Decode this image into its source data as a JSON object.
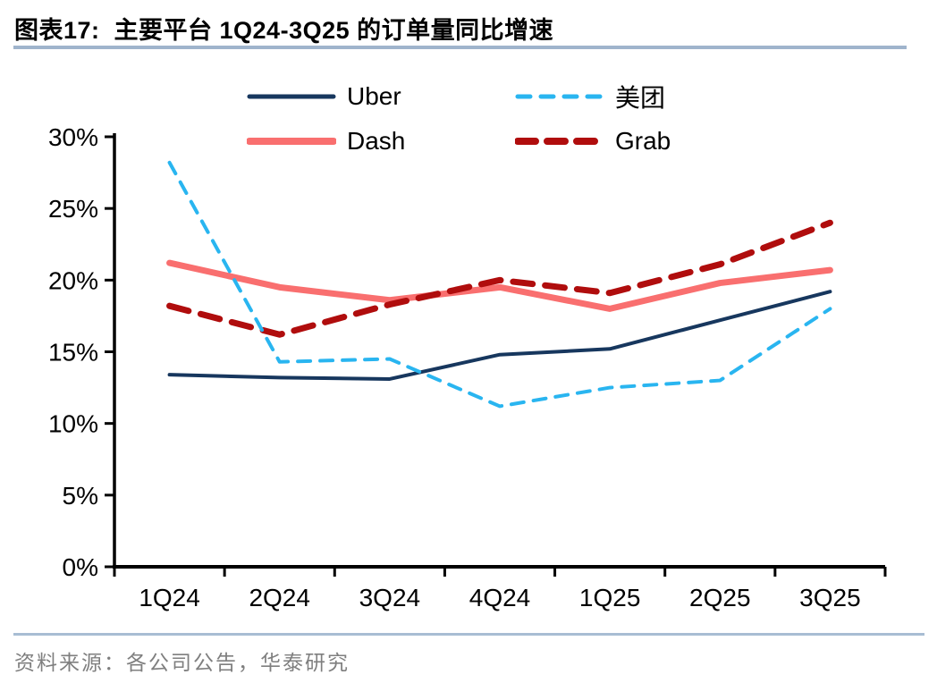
{
  "page": {
    "title": "图表17:  主要平台 1Q24-3Q25 的订单量同比增速",
    "source": "资料来源：各公司公告，华泰研究"
  },
  "chart_data": {
    "type": "line",
    "title": "主要平台 1Q24-3Q25 的订单量同比增速",
    "categories": [
      "1Q24",
      "2Q24",
      "3Q24",
      "4Q24",
      "1Q25",
      "2Q25",
      "3Q25"
    ],
    "series": [
      {
        "name": "Uber",
        "color": "#17375E",
        "style": "solid",
        "width": 4,
        "values": [
          13.4,
          13.2,
          13.1,
          14.8,
          15.2,
          17.2,
          19.2
        ]
      },
      {
        "name": "美团",
        "color": "#29B5F0",
        "style": "dashed",
        "width": 4,
        "values": [
          28.2,
          14.3,
          14.5,
          11.2,
          12.5,
          13.0,
          18.0
        ]
      },
      {
        "name": "Dash",
        "color": "#F96F6F",
        "style": "solid",
        "width": 7,
        "values": [
          21.2,
          19.5,
          18.6,
          19.5,
          18.0,
          19.8,
          20.7
        ]
      },
      {
        "name": "Grab",
        "color": "#B00D0D",
        "style": "dashed",
        "width": 7,
        "values": [
          18.2,
          16.2,
          18.3,
          20.0,
          19.1,
          21.1,
          24.0
        ]
      }
    ],
    "ylabel": "",
    "xlabel": "",
    "ylim": [
      0,
      30
    ],
    "ytick_step": 5,
    "yticks": [
      "0%",
      "5%",
      "10%",
      "15%",
      "20%",
      "25%",
      "30%"
    ],
    "grid": false,
    "legend_position": "top"
  },
  "style": {
    "axis_color": "#000000",
    "rule_color": "#9FB4CC",
    "source_color": "#7F7F7F"
  }
}
